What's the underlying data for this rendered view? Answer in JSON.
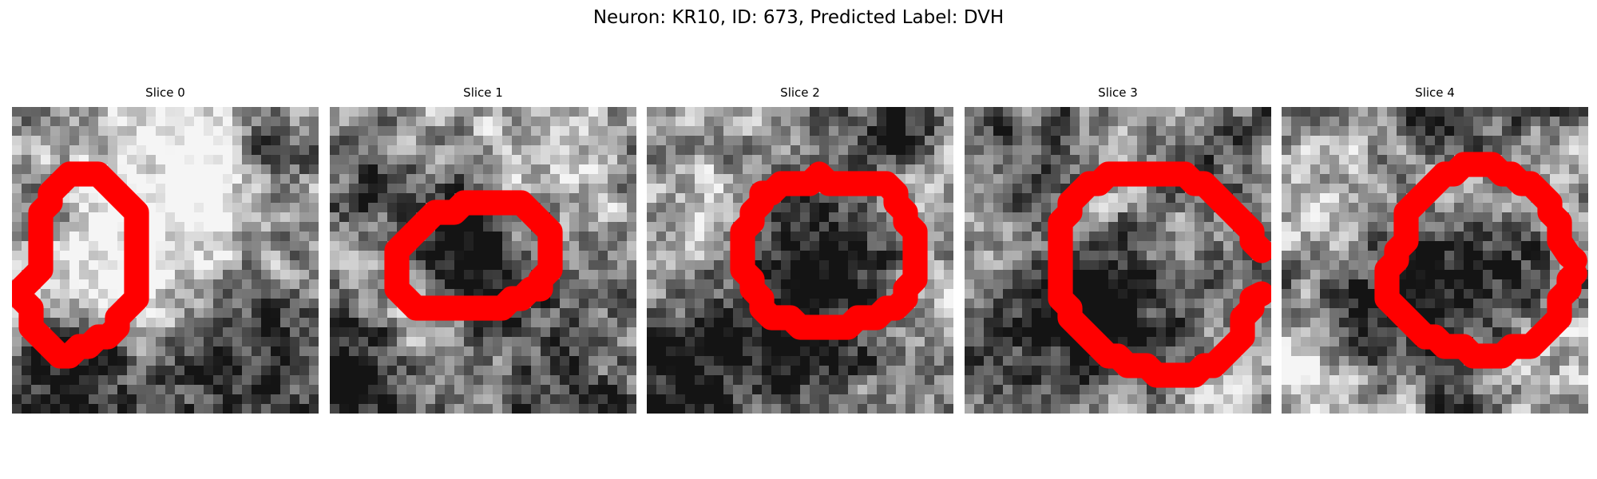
{
  "figure": {
    "title": "Neuron: KR10, ID: 673, Predicted Label: DVH"
  },
  "outline_color": "#ff0000",
  "panels": [
    {
      "title": "Slice 0",
      "seed": 11,
      "blobs": [
        {
          "cx": 19,
          "cy": 5,
          "r": 7,
          "amp": 0.55
        },
        {
          "cx": 8,
          "cy": 15,
          "r": 6,
          "amp": 0.45
        },
        {
          "cx": 6,
          "cy": 27,
          "r": 5,
          "amp": -0.55
        },
        {
          "cx": 23,
          "cy": 25,
          "r": 7,
          "amp": -0.5
        },
        {
          "cx": 15,
          "cy": 20,
          "r": 4,
          "amp": 0.35
        },
        {
          "cx": 27,
          "cy": 4,
          "r": 3,
          "amp": -0.5
        },
        {
          "cx": 2,
          "cy": 10,
          "r": 3,
          "amp": -0.4
        }
      ],
      "outline": [
        [
          6,
          7
        ],
        [
          9,
          7
        ],
        [
          10,
          8
        ],
        [
          12,
          10
        ],
        [
          13,
          11
        ],
        [
          13,
          20
        ],
        [
          11,
          22
        ],
        [
          11,
          23
        ],
        [
          10,
          24
        ],
        [
          9,
          24
        ],
        [
          8,
          25
        ],
        [
          7,
          25
        ],
        [
          6,
          26
        ],
        [
          5,
          26
        ],
        [
          4,
          25
        ],
        [
          3,
          24
        ],
        [
          2,
          23
        ],
        [
          2,
          21
        ],
        [
          1,
          20
        ],
        [
          1,
          19
        ],
        [
          3,
          17
        ],
        [
          3,
          11
        ],
        [
          4,
          10
        ],
        [
          4,
          9
        ],
        [
          5,
          8
        ],
        [
          6,
          7
        ]
      ]
    },
    {
      "title": "Slice 1",
      "seed": 29,
      "blobs": [
        {
          "cx": 14,
          "cy": 15,
          "r": 6,
          "amp": -0.6
        },
        {
          "cx": 3,
          "cy": 8,
          "r": 4,
          "amp": -0.3
        },
        {
          "cx": 3,
          "cy": 27,
          "r": 5,
          "amp": -0.6
        },
        {
          "cx": 24,
          "cy": 28,
          "r": 5,
          "amp": -0.35
        },
        {
          "cx": 22,
          "cy": 6,
          "r": 5,
          "amp": 0.35
        },
        {
          "cx": 9,
          "cy": 23,
          "r": 4,
          "amp": 0.4
        },
        {
          "cx": 5,
          "cy": 17,
          "r": 3,
          "amp": 0.3
        }
      ],
      "outline": [
        [
          11,
          11
        ],
        [
          13,
          11
        ],
        [
          14,
          10
        ],
        [
          20,
          10
        ],
        [
          21,
          11
        ],
        [
          23,
          13
        ],
        [
          23,
          17
        ],
        [
          22,
          18
        ],
        [
          22,
          19
        ],
        [
          21,
          19
        ],
        [
          20,
          20
        ],
        [
          19,
          20
        ],
        [
          18,
          21
        ],
        [
          9,
          21
        ],
        [
          8,
          20
        ],
        [
          7,
          19
        ],
        [
          7,
          15
        ],
        [
          9,
          13
        ],
        [
          10,
          12
        ],
        [
          11,
          11
        ]
      ]
    },
    {
      "title": "Slice 2",
      "seed": 47,
      "blobs": [
        {
          "cx": 18,
          "cy": 17,
          "r": 7,
          "amp": -0.6
        },
        {
          "cx": 25,
          "cy": 2,
          "r": 3,
          "amp": -0.55
        },
        {
          "cx": 3,
          "cy": 28,
          "r": 4,
          "amp": -0.6
        },
        {
          "cx": 14,
          "cy": 25,
          "r": 4,
          "amp": -0.45
        },
        {
          "cx": 6,
          "cy": 10,
          "r": 4,
          "amp": 0.35
        },
        {
          "cx": 27,
          "cy": 20,
          "r": 4,
          "amp": 0.3
        },
        {
          "cx": 28,
          "cy": 10,
          "r": 3,
          "amp": 0.3
        }
      ],
      "outline": [
        [
          18,
          7
        ],
        [
          19,
          8
        ],
        [
          25,
          8
        ],
        [
          26,
          9
        ],
        [
          26,
          10
        ],
        [
          27,
          11
        ],
        [
          27,
          12
        ],
        [
          28,
          13
        ],
        [
          28,
          18
        ],
        [
          27,
          19
        ],
        [
          27,
          20
        ],
        [
          26,
          21
        ],
        [
          25,
          21
        ],
        [
          24,
          22
        ],
        [
          22,
          22
        ],
        [
          21,
          23
        ],
        [
          16,
          23
        ],
        [
          15,
          22
        ],
        [
          13,
          22
        ],
        [
          12,
          21
        ],
        [
          12,
          20
        ],
        [
          11,
          19
        ],
        [
          11,
          18
        ],
        [
          10,
          17
        ],
        [
          10,
          13
        ],
        [
          11,
          12
        ],
        [
          11,
          11
        ],
        [
          12,
          10
        ],
        [
          12,
          9
        ],
        [
          13,
          9
        ],
        [
          14,
          8
        ],
        [
          17,
          8
        ],
        [
          18,
          7
        ]
      ]
    },
    {
      "title": "Slice 3",
      "seed": 71,
      "blobs": [
        {
          "cx": 16,
          "cy": 18,
          "r": 8,
          "amp": -0.55
        },
        {
          "cx": 9,
          "cy": 22,
          "r": 5,
          "amp": -0.45
        },
        {
          "cx": 18,
          "cy": 9,
          "r": 6,
          "amp": 0.4
        },
        {
          "cx": 6,
          "cy": 3,
          "r": 4,
          "amp": -0.35
        },
        {
          "cx": 24,
          "cy": 5,
          "r": 4,
          "amp": -0.35
        },
        {
          "cx": 27,
          "cy": 27,
          "r": 4,
          "amp": 0.3
        },
        {
          "cx": 3,
          "cy": 14,
          "r": 3,
          "amp": 0.25
        }
      ],
      "outline": [
        [
          15,
          7
        ],
        [
          23,
          7
        ],
        [
          24,
          8
        ],
        [
          25,
          8
        ],
        [
          26,
          9
        ],
        [
          27,
          10
        ],
        [
          28,
          11
        ],
        [
          29,
          12
        ],
        [
          29,
          13
        ],
        [
          30,
          14
        ],
        [
          30,
          15
        ],
        [
          31,
          16
        ],
        [
          30,
          15
        ],
        [
          30,
          14
        ],
        [
          31,
          16
        ],
        [
          31,
          18
        ],
        [
          31,
          19
        ],
        [
          31,
          19.5
        ]
      ]
    },
    {
      "title": "Slice 4",
      "seed": 97,
      "blobs": [
        {
          "cx": 19,
          "cy": 17,
          "r": 7,
          "amp": -0.55
        },
        {
          "cx": 9,
          "cy": 19,
          "r": 5,
          "amp": -0.35
        },
        {
          "cx": 18,
          "cy": 9,
          "r": 5,
          "amp": 0.3
        },
        {
          "cx": 17,
          "cy": 1,
          "r": 3,
          "amp": -0.6
        },
        {
          "cx": 4,
          "cy": 10,
          "r": 4,
          "amp": 0.3
        },
        {
          "cx": 28,
          "cy": 24,
          "r": 4,
          "amp": 0.35
        },
        {
          "cx": 2,
          "cy": 27,
          "r": 4,
          "amp": 0.3
        }
      ],
      "outline": [
        [
          19,
          6
        ],
        [
          22,
          6
        ],
        [
          23,
          7
        ],
        [
          24,
          7
        ],
        [
          25,
          8
        ],
        [
          26,
          8
        ],
        [
          27,
          9
        ],
        [
          28,
          10
        ],
        [
          28,
          11
        ],
        [
          29,
          12
        ],
        [
          29,
          14
        ],
        [
          30,
          15
        ],
        [
          30,
          16
        ],
        [
          30.6,
          16.6
        ]
      ]
    }
  ]
}
